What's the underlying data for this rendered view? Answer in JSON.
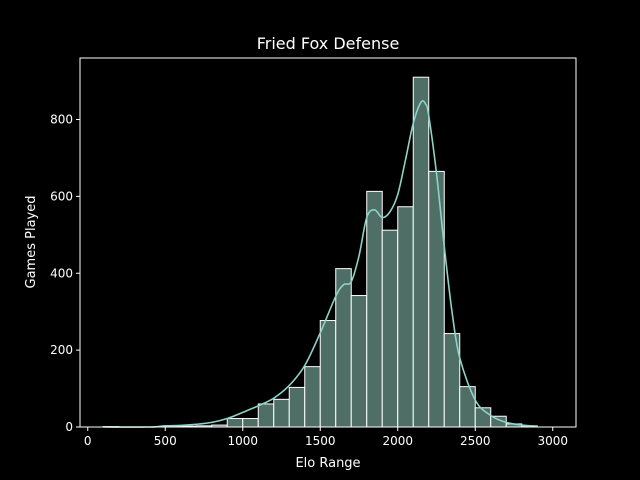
{
  "chart_data": {
    "type": "bar",
    "subtype": "histogram",
    "title": "Fried Fox Defense",
    "xlabel": "Elo Range",
    "ylabel": "Games Played",
    "xlim": [
      -50,
      3150
    ],
    "ylim": [
      0,
      960
    ],
    "xticks": [
      0,
      500,
      1000,
      1500,
      2000,
      2500,
      3000
    ],
    "yticks": [
      0,
      200,
      400,
      600,
      800
    ],
    "grid": false,
    "legend": "none",
    "bin_width": 100,
    "bins": [
      {
        "start": 100,
        "count": 1
      },
      {
        "start": 500,
        "count": 2
      },
      {
        "start": 600,
        "count": 2
      },
      {
        "start": 700,
        "count": 3
      },
      {
        "start": 800,
        "count": 5
      },
      {
        "start": 900,
        "count": 22
      },
      {
        "start": 1000,
        "count": 22
      },
      {
        "start": 1100,
        "count": 60
      },
      {
        "start": 1200,
        "count": 72
      },
      {
        "start": 1300,
        "count": 103
      },
      {
        "start": 1400,
        "count": 157
      },
      {
        "start": 1500,
        "count": 277
      },
      {
        "start": 1600,
        "count": 412
      },
      {
        "start": 1700,
        "count": 342
      },
      {
        "start": 1800,
        "count": 613
      },
      {
        "start": 1900,
        "count": 512
      },
      {
        "start": 2000,
        "count": 573
      },
      {
        "start": 2100,
        "count": 910
      },
      {
        "start": 2200,
        "count": 665
      },
      {
        "start": 2300,
        "count": 243
      },
      {
        "start": 2400,
        "count": 105
      },
      {
        "start": 2500,
        "count": 50
      },
      {
        "start": 2600,
        "count": 28
      },
      {
        "start": 2700,
        "count": 8
      },
      {
        "start": 2800,
        "count": 3
      }
    ],
    "kde": {
      "x": [
        100,
        400,
        500,
        600,
        700,
        800,
        900,
        1000,
        1100,
        1200,
        1300,
        1400,
        1500,
        1600,
        1650,
        1700,
        1750,
        1800,
        1850,
        1900,
        1950,
        2000,
        2050,
        2100,
        2150,
        2180,
        2200,
        2250,
        2300,
        2350,
        2400,
        2500,
        2600,
        2700,
        2800,
        2900
      ],
      "y": [
        0,
        0,
        3,
        4,
        7,
        12,
        22,
        38,
        55,
        75,
        108,
        160,
        245,
        340,
        370,
        378,
        445,
        545,
        565,
        545,
        560,
        605,
        695,
        790,
        845,
        840,
        810,
        660,
        470,
        300,
        180,
        70,
        30,
        12,
        5,
        2
      ]
    },
    "colors": {
      "bar_fill": "#4f6f66",
      "bar_edge": "#ffffff",
      "kde_line": "#8dd3c7",
      "axes": "#ffffff",
      "background": "#000000"
    }
  }
}
